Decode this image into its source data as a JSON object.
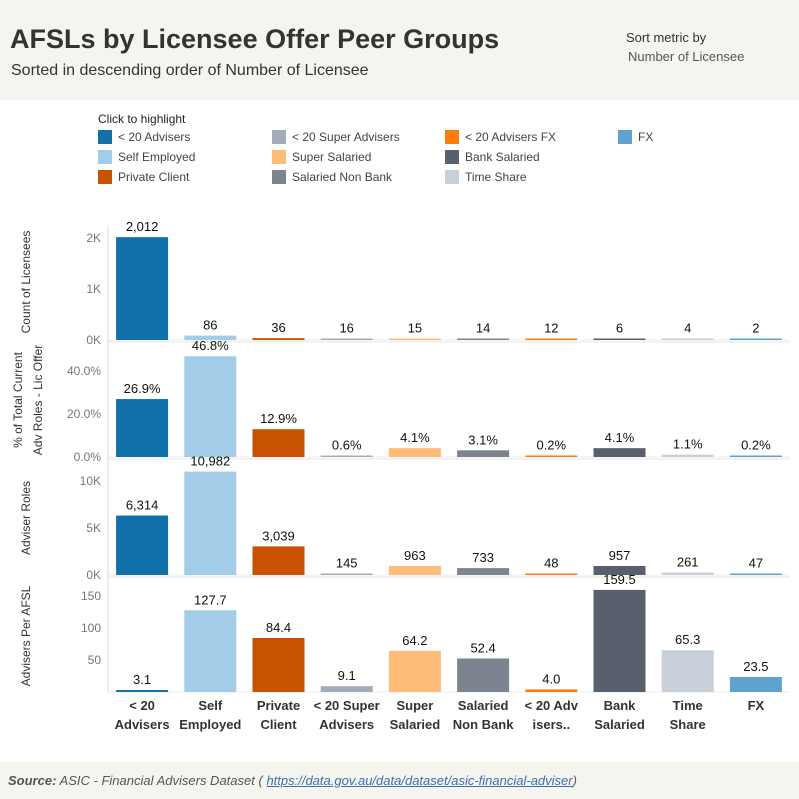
{
  "header": {
    "title": "AFSLs by Licensee Offer Peer Groups",
    "subtitle": "Sorted in descending order of Number of Licensee",
    "sort_label": "Sort metric by",
    "sort_value": "Number of Licensee"
  },
  "legend": {
    "title": "Click to highlight",
    "items": [
      {
        "label": "< 20 Advisers",
        "color": "#1170aa"
      },
      {
        "label": "< 20 Super Advisers",
        "color": "#a3acb9"
      },
      {
        "label": "< 20 Advisers FX",
        "color": "#fc7d0b"
      },
      {
        "label": "FX",
        "color": "#5fa2ce"
      },
      {
        "label": "Self Employed",
        "color": "#a3cce9"
      },
      {
        "label": "Super Salaried",
        "color": "#ffbc79"
      },
      {
        "label": "Bank Salaried",
        "color": "#57606c"
      },
      {
        "label": "Private Client",
        "color": "#c85200"
      },
      {
        "label": "Salaried Non Bank",
        "color": "#7b848f"
      },
      {
        "label": "Time Share",
        "color": "#c8d0d9"
      }
    ]
  },
  "chart_data": {
    "type": "bar",
    "categories": [
      {
        "line1": "< 20",
        "line2": "Advisers",
        "color": "#1170aa"
      },
      {
        "line1": "Self",
        "line2": "Employed",
        "color": "#a3cce9"
      },
      {
        "line1": "Private",
        "line2": "Client",
        "color": "#c85200"
      },
      {
        "line1": "< 20 Super",
        "line2": "Advisers",
        "color": "#a3acb9"
      },
      {
        "line1": "Super",
        "line2": "Salaried",
        "color": "#ffbc79"
      },
      {
        "line1": "Salaried",
        "line2": "Non Bank",
        "color": "#7b848f"
      },
      {
        "line1": "< 20 Adv",
        "line2": "isers..",
        "color": "#fc7d0b"
      },
      {
        "line1": "Bank",
        "line2": "Salaried",
        "color": "#57606c"
      },
      {
        "line1": "Time",
        "line2": "Share",
        "color": "#c8d0d9"
      },
      {
        "line1": "FX",
        "line2": "",
        "color": "#5fa2ce"
      }
    ],
    "panels": [
      {
        "ylabel": [
          "Count of Licensees"
        ],
        "ylim": [
          0,
          2250
        ],
        "ticks": [
          {
            "value": 0,
            "label": "0K"
          },
          {
            "value": 1000,
            "label": "1K"
          },
          {
            "value": 2000,
            "label": "2K"
          }
        ],
        "values": [
          2012,
          86,
          36,
          16,
          15,
          14,
          12,
          6,
          4,
          2
        ],
        "labels": [
          "2,012",
          "86",
          "36",
          "16",
          "15",
          "14",
          "12",
          "6",
          "4",
          "2"
        ]
      },
      {
        "ylabel": [
          "% of Total Current",
          "Adv Roles - Lic Offer"
        ],
        "ylim": [
          0,
          0.52
        ],
        "ticks": [
          {
            "value": 0,
            "label": "0.0%"
          },
          {
            "value": 0.2,
            "label": "20.0%"
          },
          {
            "value": 0.4,
            "label": "40.0%"
          }
        ],
        "values": [
          0.269,
          0.468,
          0.129,
          0.006,
          0.041,
          0.031,
          0.002,
          0.041,
          0.011,
          0.002
        ],
        "labels": [
          "26.9%",
          "46.8%",
          "12.9%",
          "0.6%",
          "4.1%",
          "3.1%",
          "0.2%",
          "4.1%",
          "1.1%",
          "0.2%"
        ]
      },
      {
        "ylabel": [
          "Adviser Roles"
        ],
        "ylim": [
          0,
          12000
        ],
        "ticks": [
          {
            "value": 0,
            "label": "0K"
          },
          {
            "value": 5000,
            "label": "5K"
          },
          {
            "value": 10000,
            "label": "10K"
          }
        ],
        "values": [
          6314,
          10982,
          3039,
          145,
          963,
          733,
          48,
          957,
          261,
          47
        ],
        "labels": [
          "6,314",
          "10,982",
          "3,039",
          "145",
          "963",
          "733",
          "48",
          "957",
          "261",
          "47"
        ]
      },
      {
        "ylabel": [
          "Advisers Per AFSL"
        ],
        "ylim": [
          0,
          175
        ],
        "ticks": [
          {
            "value": 50,
            "label": "50"
          },
          {
            "value": 100,
            "label": "100"
          },
          {
            "value": 150,
            "label": "150"
          }
        ],
        "values": [
          3.1,
          127.7,
          84.4,
          9.1,
          64.2,
          52.4,
          4.0,
          159.5,
          65.3,
          23.5
        ],
        "labels": [
          "3.1",
          "127.7",
          "84.4",
          "9.1",
          "64.2",
          "52.4",
          "4.0",
          "159.5",
          "65.3",
          "23.5"
        ]
      }
    ]
  },
  "footer": {
    "source_label": "Source:",
    "source_text": "ASIC - Financial Advisers Dataset (",
    "source_link": "https://data.gov.au/data/dataset/asic-financial-adviser",
    "source_close": ")"
  }
}
